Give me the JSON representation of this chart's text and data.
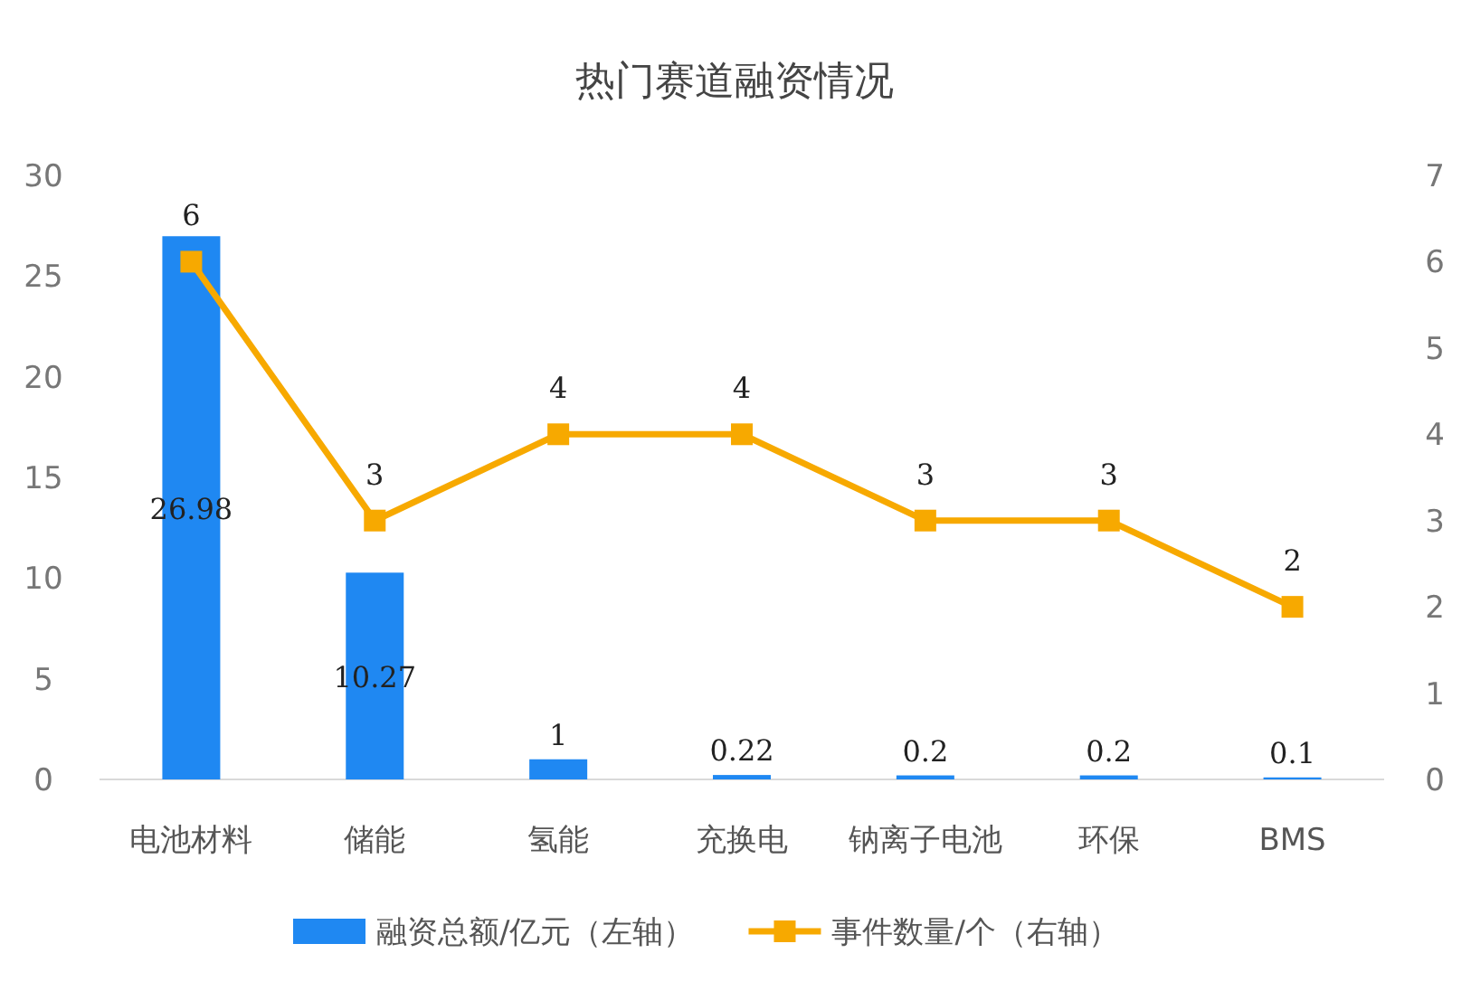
{
  "chart_data": {
    "type": "bar",
    "title": "热门赛道融资情况",
    "categories": [
      "电池材料",
      "储能",
      "氢能",
      "充换电",
      "钠离子电池",
      "环保",
      "BMS"
    ],
    "series": [
      {
        "name": "融资总额/亿元（左轴）",
        "color": "#1f88f2",
        "values": [
          26.98,
          10.27,
          1,
          0.22,
          0.2,
          0.2,
          0.1
        ]
      },
      {
        "name": "事件数量/个（右轴）",
        "type": "line",
        "axis": "y2",
        "color": "#f7a900",
        "marker": "square",
        "values": [
          6,
          3,
          4,
          4,
          3,
          3,
          2
        ]
      }
    ],
    "ylim": [
      0,
      30
    ],
    "yticks": [
      0,
      5,
      10,
      15,
      20,
      25,
      30
    ],
    "y2lim": [
      0,
      7
    ],
    "y2ticks": [
      0,
      1,
      2,
      3,
      4,
      5,
      6,
      7
    ],
    "data_labels": true,
    "legend": "bottom",
    "grid": false
  }
}
